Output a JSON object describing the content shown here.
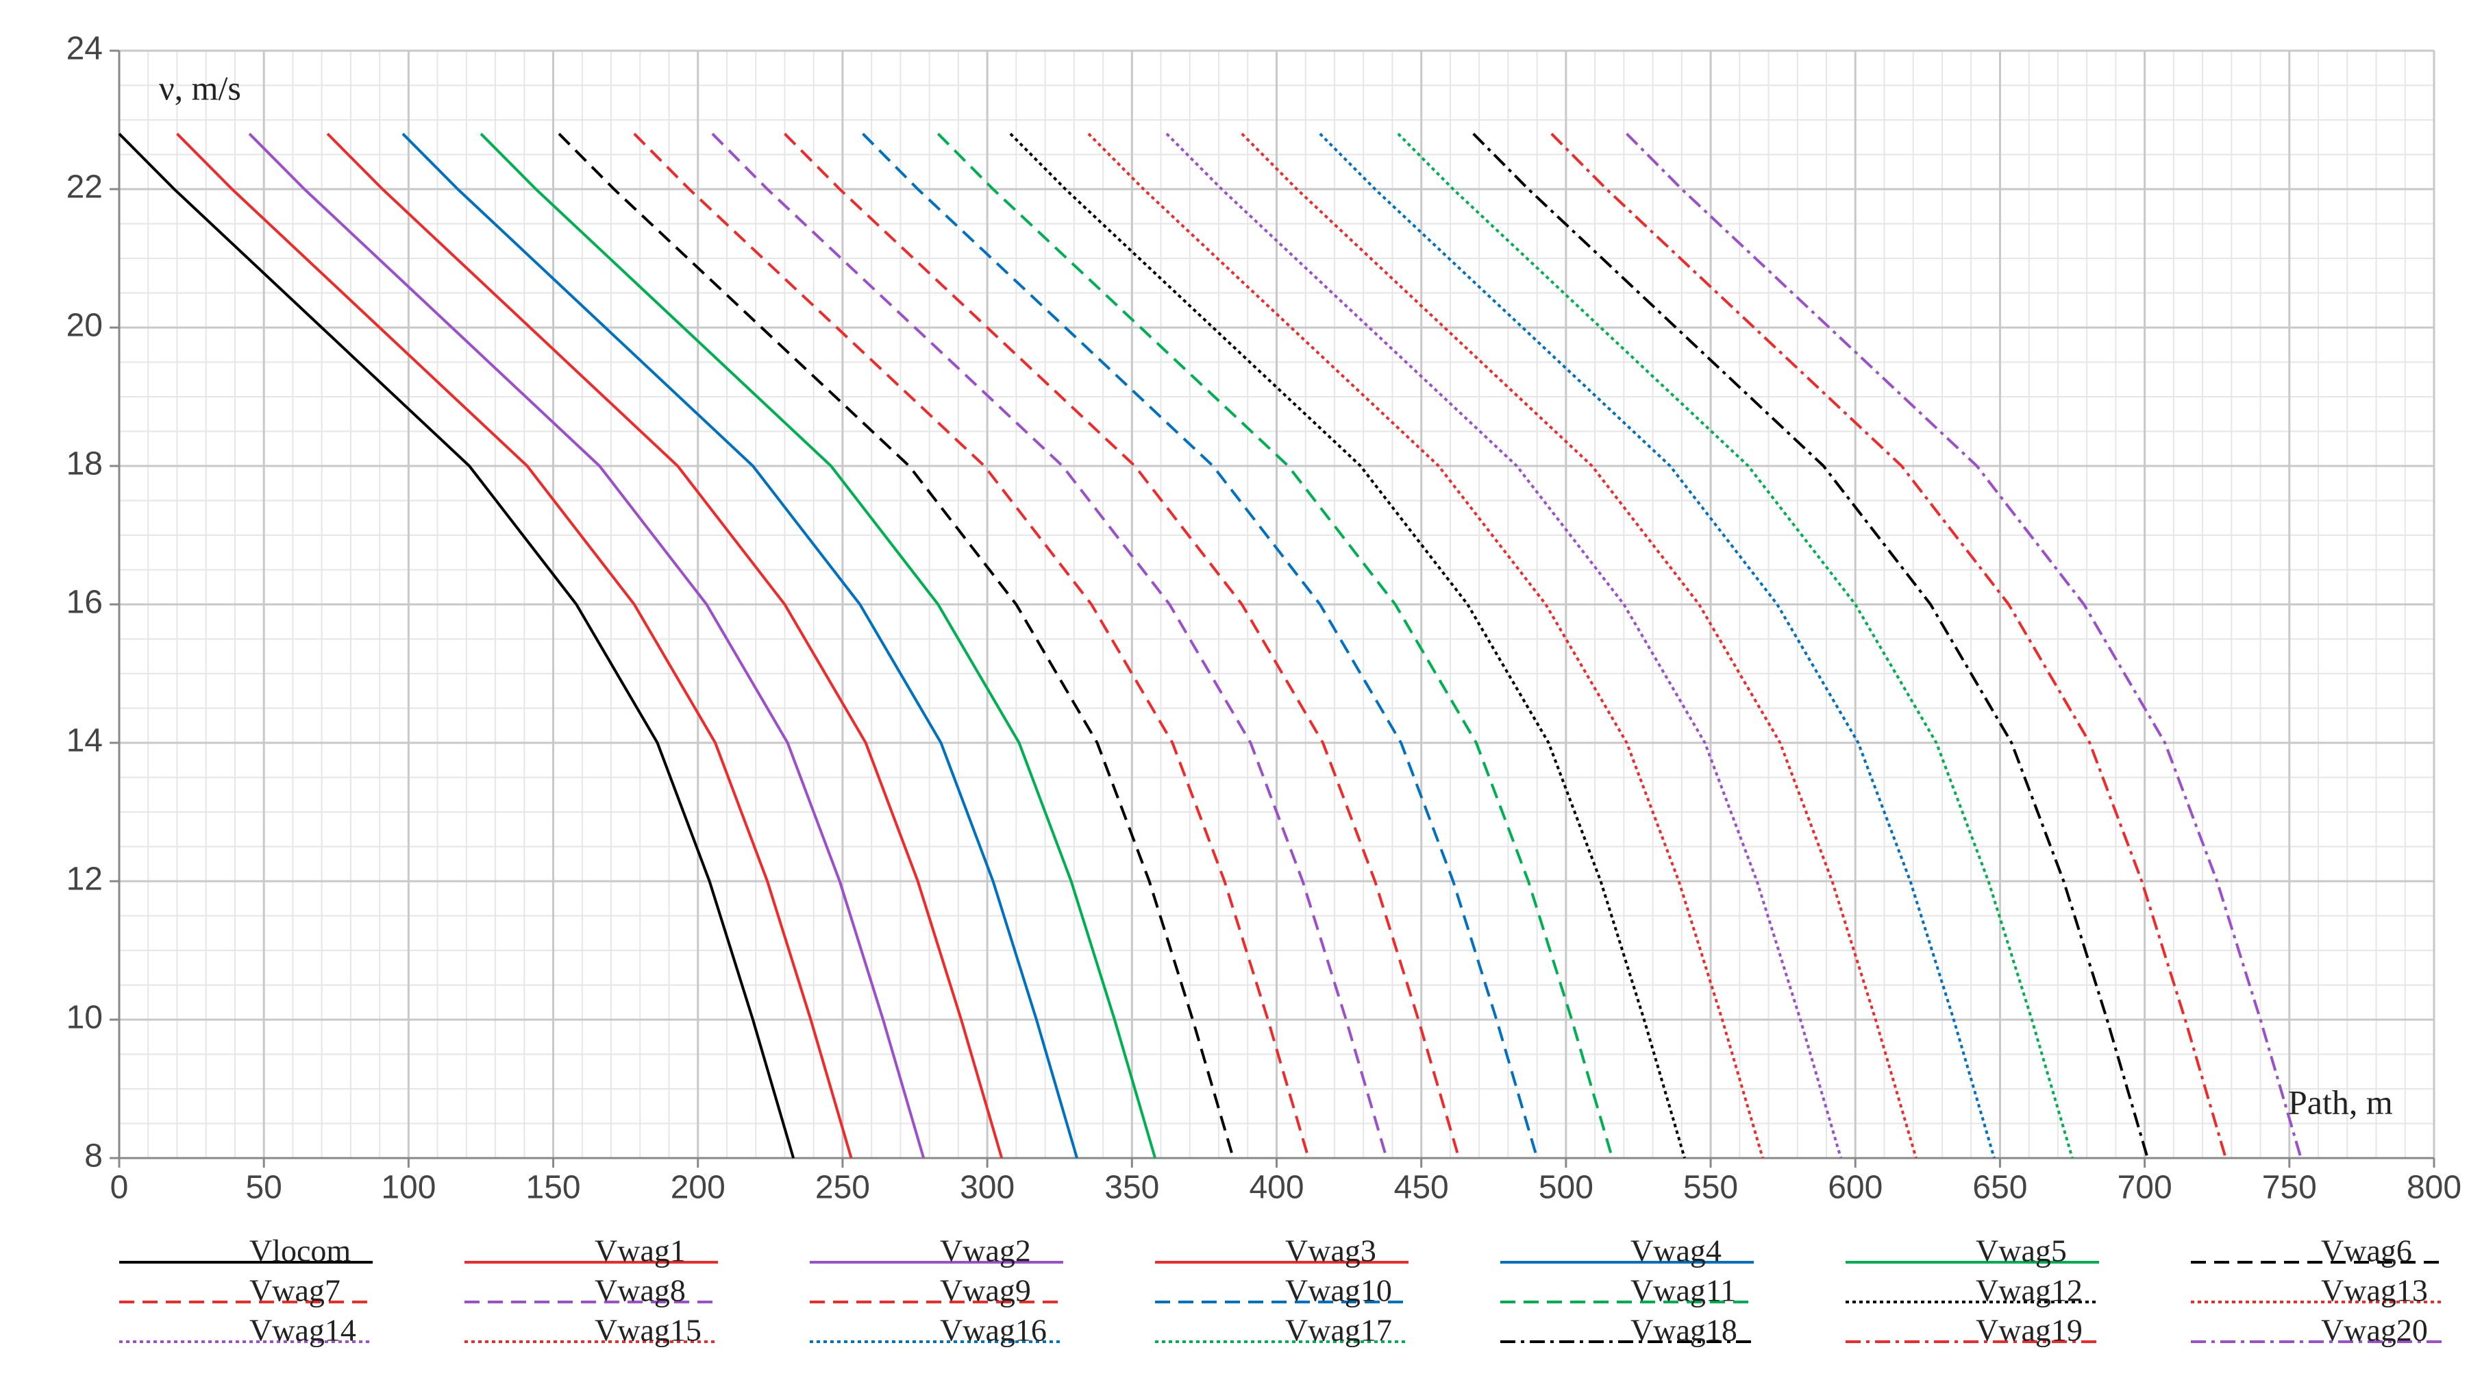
{
  "chart_data": {
    "type": "line",
    "y_label": "ν, m/s",
    "x_label": "Path, m",
    "xlim": [
      0,
      800
    ],
    "xticks": [
      0,
      50,
      100,
      150,
      200,
      250,
      300,
      350,
      400,
      450,
      500,
      550,
      600,
      650,
      700,
      750,
      800
    ],
    "ylim": [
      8,
      24
    ],
    "yticks": [
      8,
      10,
      12,
      14,
      16,
      18,
      20,
      22,
      24
    ],
    "grid": true,
    "minor_grid": true,
    "legend": "bottom",
    "series": [
      {
        "name": "Vlocom",
        "color": "#000000",
        "dash": "solid",
        "x": [
          0,
          19,
          70,
          121,
          158,
          186,
          204,
          219,
          233
        ],
        "values": [
          22.8,
          22,
          20,
          18,
          16,
          14,
          12,
          10,
          8
        ]
      },
      {
        "name": "Vwag1",
        "color": "#ee2b2b",
        "dash": "solid",
        "x": [
          20,
          39,
          90,
          141,
          178,
          206,
          224,
          239,
          253
        ],
        "values": [
          22.8,
          22,
          20,
          18,
          16,
          14,
          12,
          10,
          8
        ]
      },
      {
        "name": "Vwag2",
        "color": "#9b4fc9",
        "dash": "solid",
        "x": [
          45,
          64,
          115,
          166,
          203,
          231,
          249,
          264,
          278
        ],
        "values": [
          22.8,
          22,
          20,
          18,
          16,
          14,
          12,
          10,
          8
        ]
      },
      {
        "name": "Vwag3",
        "color": "#ee2b2b",
        "dash": "solid",
        "x": [
          72,
          91,
          142,
          193,
          230,
          258,
          276,
          291,
          305
        ],
        "values": [
          22.8,
          22,
          20,
          18,
          16,
          14,
          12,
          10,
          8
        ]
      },
      {
        "name": "Vwag4",
        "color": "#0070c0",
        "dash": "solid",
        "x": [
          98,
          117,
          168,
          219,
          256,
          284,
          302,
          317,
          331
        ],
        "values": [
          22.8,
          22,
          20,
          18,
          16,
          14,
          12,
          10,
          8
        ]
      },
      {
        "name": "Vwag5",
        "color": "#00b050",
        "dash": "solid",
        "x": [
          125,
          144,
          195,
          246,
          283,
          311,
          329,
          344,
          358
        ],
        "values": [
          22.8,
          22,
          20,
          18,
          16,
          14,
          12,
          10,
          8
        ]
      },
      {
        "name": "Vwag6",
        "color": "#000000",
        "dash": "dashed",
        "x": [
          152,
          171,
          222,
          273,
          310,
          338,
          356,
          371,
          385
        ],
        "values": [
          22.8,
          22,
          20,
          18,
          16,
          14,
          12,
          10,
          8
        ]
      },
      {
        "name": "Vwag7",
        "color": "#ee2b2b",
        "dash": "dashed",
        "x": [
          178,
          197,
          248,
          299,
          336,
          364,
          382,
          397,
          411
        ],
        "values": [
          22.8,
          22,
          20,
          18,
          16,
          14,
          12,
          10,
          8
        ]
      },
      {
        "name": "Vwag8",
        "color": "#9b4fc9",
        "dash": "dashed",
        "x": [
          205,
          224,
          275,
          326,
          363,
          391,
          409,
          424,
          438
        ],
        "values": [
          22.8,
          22,
          20,
          18,
          16,
          14,
          12,
          10,
          8
        ]
      },
      {
        "name": "Vwag9",
        "color": "#ee2b2b",
        "dash": "dashed",
        "x": [
          230,
          249,
          300,
          351,
          388,
          416,
          434,
          449,
          463
        ],
        "values": [
          22.8,
          22,
          20,
          18,
          16,
          14,
          12,
          10,
          8
        ]
      },
      {
        "name": "Vwag10",
        "color": "#0070c0",
        "dash": "dashed",
        "x": [
          257,
          276,
          327,
          378,
          415,
          443,
          461,
          476,
          490
        ],
        "values": [
          22.8,
          22,
          20,
          18,
          16,
          14,
          12,
          10,
          8
        ]
      },
      {
        "name": "Vwag11",
        "color": "#00b050",
        "dash": "dashed",
        "x": [
          283,
          302,
          353,
          404,
          441,
          469,
          487,
          502,
          516
        ],
        "values": [
          22.8,
          22,
          20,
          18,
          16,
          14,
          12,
          10,
          8
        ]
      },
      {
        "name": "Vwag12",
        "color": "#000000",
        "dash": "dotted",
        "x": [
          308,
          327,
          378,
          429,
          466,
          494,
          512,
          527,
          541
        ],
        "values": [
          22.8,
          22,
          20,
          18,
          16,
          14,
          12,
          10,
          8
        ]
      },
      {
        "name": "Vwag13",
        "color": "#ee2b2b",
        "dash": "dotted",
        "x": [
          335,
          354,
          405,
          456,
          493,
          521,
          539,
          554,
          568
        ],
        "values": [
          22.8,
          22,
          20,
          18,
          16,
          14,
          12,
          10,
          8
        ]
      },
      {
        "name": "Vwag14",
        "color": "#9b4fc9",
        "dash": "dotted",
        "x": [
          362,
          381,
          432,
          483,
          520,
          548,
          566,
          581,
          595
        ],
        "values": [
          22.8,
          22,
          20,
          18,
          16,
          14,
          12,
          10,
          8
        ]
      },
      {
        "name": "Vwag15",
        "color": "#ee2b2b",
        "dash": "dotted",
        "x": [
          388,
          407,
          458,
          509,
          546,
          574,
          592,
          607,
          621
        ],
        "values": [
          22.8,
          22,
          20,
          18,
          16,
          14,
          12,
          10,
          8
        ]
      },
      {
        "name": "Vwag16",
        "color": "#0070c0",
        "dash": "dotted",
        "x": [
          415,
          434,
          485,
          536,
          573,
          601,
          619,
          634,
          648
        ],
        "values": [
          22.8,
          22,
          20,
          18,
          16,
          14,
          12,
          10,
          8
        ]
      },
      {
        "name": "Vwag17",
        "color": "#00b050",
        "dash": "dotted",
        "x": [
          442,
          461,
          512,
          563,
          600,
          628,
          646,
          661,
          675
        ],
        "values": [
          22.8,
          22,
          20,
          18,
          16,
          14,
          12,
          10,
          8
        ]
      },
      {
        "name": "Vwag18",
        "color": "#000000",
        "dash": "dashdot",
        "x": [
          468,
          487,
          538,
          589,
          626,
          654,
          672,
          687,
          701
        ],
        "values": [
          22.8,
          22,
          20,
          18,
          16,
          14,
          12,
          10,
          8
        ]
      },
      {
        "name": "Vwag19",
        "color": "#ee2b2b",
        "dash": "dashdot",
        "x": [
          495,
          514,
          565,
          616,
          653,
          681,
          699,
          714,
          728
        ],
        "values": [
          22.8,
          22,
          20,
          18,
          16,
          14,
          12,
          10,
          8
        ]
      },
      {
        "name": "Vwag20",
        "color": "#9b4fc9",
        "dash": "dashdot",
        "x": [
          521,
          540,
          591,
          642,
          679,
          707,
          725,
          740,
          754
        ],
        "values": [
          22.8,
          22,
          20,
          18,
          16,
          14,
          12,
          10,
          8
        ]
      }
    ]
  }
}
